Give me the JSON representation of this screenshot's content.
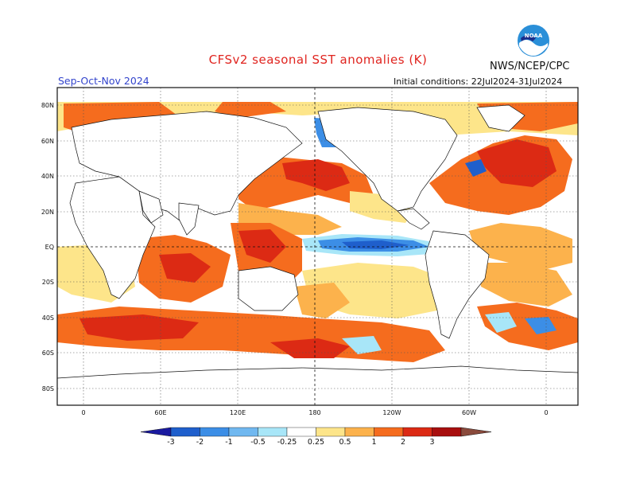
{
  "header": {
    "title": "CFSv2 seasonal SST anomalies (K)",
    "season": "Sep-Oct-Nov 2024",
    "agency": "NWS/NCEP/CPC",
    "initial_conditions": "Initial conditions: 22Jul2024-31Jul2024",
    "logo_text": "NOAA"
  },
  "map": {
    "lat_labels": [
      "80N",
      "60N",
      "40N",
      "20N",
      "EQ",
      "20S",
      "40S",
      "60S",
      "80S"
    ],
    "lon_labels": [
      "0",
      "60E",
      "120E",
      "180",
      "120W",
      "60W",
      "0"
    ]
  },
  "colorbar": {
    "labels": [
      "-3",
      "-2",
      "-1",
      "-0.5",
      "-0.25",
      "0.25",
      "0.5",
      "1",
      "2",
      "3"
    ],
    "colors": [
      "#1a1aa0",
      "#1f5fcc",
      "#3c8ee6",
      "#70b8f0",
      "#a8e6f8",
      "#ffffff",
      "#fde58a",
      "#fcb24c",
      "#f56c1e",
      "#dc2a14",
      "#a80e0e",
      "#8a4a3c"
    ]
  },
  "palette": {
    "land": "#ffffff",
    "ocean_neutral": "#ffffff",
    "light_yellow": "#fde58a",
    "light_orange": "#fcb24c",
    "orange": "#f56c1e",
    "red": "#dc2a14",
    "dark_red": "#a80e0e",
    "light_blue": "#a8e6f8",
    "mid_blue": "#3c8ee6",
    "blue": "#1f5fcc"
  }
}
